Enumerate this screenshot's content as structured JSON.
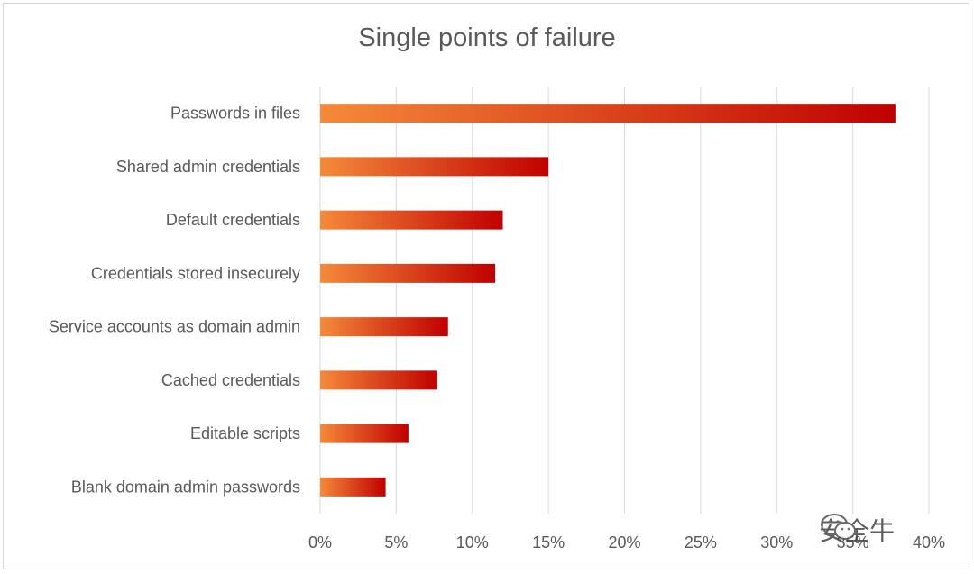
{
  "chart_data": {
    "type": "bar",
    "orientation": "horizontal",
    "title": "Single points of failure",
    "categories": [
      "Passwords in files",
      "Shared admin credentials",
      "Default credentials",
      "Credentials stored insecurely",
      "Service accounts as domain admin",
      "Cached credentials",
      "Editable scripts",
      "Blank domain admin passwords"
    ],
    "values": [
      37.8,
      15.0,
      12.0,
      11.5,
      8.4,
      7.7,
      5.8,
      4.3
    ],
    "value_unit": "%",
    "xlim": [
      0,
      40
    ],
    "xticks": [
      "0%",
      "5%",
      "10%",
      "15%",
      "20%",
      "25%",
      "30%",
      "35%",
      "40%"
    ],
    "grid": "vertical",
    "legend": "none",
    "colors": {
      "gradient_start": "#f58a3a",
      "gradient_end": "#c00000"
    }
  },
  "watermark": {
    "text": "安全牛",
    "icon": "wechat-icon"
  }
}
